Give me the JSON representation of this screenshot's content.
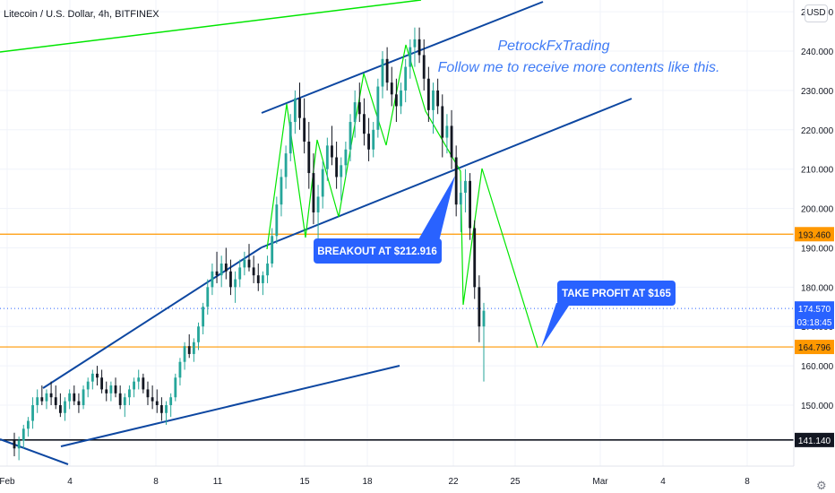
{
  "header": {
    "symbol_title": "Litecoin / U.S. Dollar, 4h, BITFINEX",
    "currency_button": "USD"
  },
  "watermark": {
    "line1": "PetrockFxTrading",
    "line2": "Follow me to receive more contents like this."
  },
  "annotations": {
    "breakout": "BREAKOUT AT $212.916",
    "take_profit": "TAKE PROFIT AT $165"
  },
  "price_axis": {
    "ticks": [
      "250.000",
      "240.000",
      "230.000",
      "220.000",
      "210.000",
      "200.000",
      "190.000",
      "180.000",
      "170.000",
      "160.000",
      "150.000"
    ],
    "tick_values": [
      250,
      240,
      230,
      220,
      210,
      200,
      190,
      180,
      170,
      160,
      150
    ]
  },
  "price_labels": [
    {
      "text": "193.460",
      "value": 193.46,
      "color": "#ff9800",
      "text_color": "#131722"
    },
    {
      "text": "174.570",
      "value": 174.57,
      "color": "#2962ff",
      "text_color": "#ffffff"
    },
    {
      "text": "03:18:45",
      "value": 171.2,
      "color": "#2962ff",
      "text_color": "#ffffff"
    },
    {
      "text": "164.796",
      "value": 164.796,
      "color": "#ff9800",
      "text_color": "#131722"
    },
    {
      "text": "141.140",
      "value": 141.14,
      "color": "#131722",
      "text_color": "#ffffff"
    }
  ],
  "time_axis": {
    "labels": [
      "Feb",
      "4",
      "8",
      "11",
      "15",
      "18",
      "22",
      "25",
      "Mar",
      "4",
      "8"
    ]
  },
  "colors": {
    "up": "#26a69a",
    "down": "#131722",
    "channel": "#0d47a1",
    "projection": "#00e600",
    "orange_level": "#ff9800",
    "callout": "#2962ff"
  },
  "chart_data": {
    "type": "candlestick",
    "title": "Litecoin / U.S. Dollar, 4h, BITFINEX",
    "ylim": [
      134.5,
      253
    ],
    "x": [
      "Feb",
      "4",
      "8",
      "11",
      "15",
      "18",
      "22",
      "25",
      "Mar",
      "4",
      "8"
    ],
    "horizontal_levels": [
      193.46,
      164.796,
      141.14
    ],
    "current_price": 174.57,
    "candles": [
      [
        141,
        143,
        137,
        139
      ],
      [
        139,
        142,
        136,
        141
      ],
      [
        141,
        145,
        139,
        144
      ],
      [
        144,
        147,
        142,
        146
      ],
      [
        146,
        152,
        144,
        150
      ],
      [
        150,
        154,
        148,
        152
      ],
      [
        152,
        155,
        150,
        151
      ],
      [
        151,
        154,
        149,
        153
      ],
      [
        153,
        156,
        150,
        152
      ],
      [
        152,
        155,
        149,
        150
      ],
      [
        150,
        153,
        147,
        148
      ],
      [
        148,
        152,
        146,
        151
      ],
      [
        151,
        154,
        149,
        153
      ],
      [
        153,
        155,
        150,
        151
      ],
      [
        151,
        153,
        148,
        150
      ],
      [
        150,
        155,
        149,
        154
      ],
      [
        154,
        157,
        152,
        156
      ],
      [
        156,
        159,
        154,
        158
      ],
      [
        158,
        160,
        155,
        157
      ],
      [
        157,
        159,
        153,
        154
      ],
      [
        154,
        156,
        151,
        153
      ],
      [
        153,
        156,
        151,
        155
      ],
      [
        155,
        157,
        152,
        153
      ],
      [
        153,
        155,
        149,
        150
      ],
      [
        150,
        153,
        147,
        152
      ],
      [
        152,
        155,
        150,
        154
      ],
      [
        154,
        157,
        152,
        156
      ],
      [
        156,
        159,
        154,
        157
      ],
      [
        157,
        158,
        153,
        154
      ],
      [
        154,
        156,
        150,
        152
      ],
      [
        152,
        155,
        149,
        151
      ],
      [
        151,
        154,
        148,
        150
      ],
      [
        150,
        152,
        146,
        148
      ],
      [
        148,
        151,
        145,
        150
      ],
      [
        150,
        153,
        147,
        152
      ],
      [
        152,
        158,
        151,
        157
      ],
      [
        157,
        162,
        155,
        161
      ],
      [
        161,
        166,
        159,
        165
      ],
      [
        165,
        168,
        162,
        163
      ],
      [
        163,
        167,
        161,
        166
      ],
      [
        166,
        171,
        164,
        170
      ],
      [
        170,
        176,
        168,
        175
      ],
      [
        175,
        182,
        173,
        180
      ],
      [
        180,
        186,
        178,
        184
      ],
      [
        184,
        189,
        181,
        183
      ],
      [
        183,
        188,
        180,
        186
      ],
      [
        186,
        190,
        182,
        184
      ],
      [
        184,
        187,
        178,
        180
      ],
      [
        180,
        184,
        176,
        182
      ],
      [
        182,
        187,
        180,
        185
      ],
      [
        185,
        189,
        183,
        187
      ],
      [
        187,
        191,
        184,
        185
      ],
      [
        185,
        188,
        181,
        183
      ],
      [
        183,
        186,
        179,
        181
      ],
      [
        181,
        184,
        178,
        183
      ],
      [
        183,
        188,
        181,
        186
      ],
      [
        186,
        195,
        185,
        193
      ],
      [
        193,
        203,
        191,
        201
      ],
      [
        201,
        210,
        198,
        208
      ],
      [
        208,
        216,
        205,
        214
      ],
      [
        214,
        224,
        212,
        222
      ],
      [
        222,
        230,
        219,
        228
      ],
      [
        228,
        232,
        220,
        223
      ],
      [
        223,
        228,
        214,
        217
      ],
      [
        217,
        222,
        205,
        209
      ],
      [
        209,
        214,
        196,
        199
      ],
      [
        199,
        206,
        192,
        203
      ],
      [
        203,
        212,
        200,
        210
      ],
      [
        210,
        218,
        207,
        216
      ],
      [
        216,
        221,
        211,
        213
      ],
      [
        213,
        217,
        205,
        208
      ],
      [
        208,
        213,
        202,
        211
      ],
      [
        211,
        217,
        208,
        215
      ],
      [
        215,
        224,
        212,
        222
      ],
      [
        222,
        230,
        218,
        227
      ],
      [
        227,
        232,
        222,
        224
      ],
      [
        224,
        228,
        216,
        219
      ],
      [
        219,
        223,
        212,
        215
      ],
      [
        215,
        222,
        213,
        220
      ],
      [
        220,
        233,
        218,
        231
      ],
      [
        231,
        240,
        228,
        238
      ],
      [
        238,
        241,
        230,
        232
      ],
      [
        232,
        236,
        226,
        229
      ],
      [
        229,
        233,
        222,
        226
      ],
      [
        226,
        232,
        224,
        230
      ],
      [
        230,
        238,
        227,
        236
      ],
      [
        236,
        243,
        233,
        241
      ],
      [
        241,
        246,
        236,
        243
      ],
      [
        243,
        246,
        237,
        239
      ],
      [
        239,
        243,
        230,
        233
      ],
      [
        233,
        236,
        222,
        225
      ],
      [
        225,
        232,
        219,
        230
      ],
      [
        230,
        233,
        224,
        226
      ],
      [
        226,
        229,
        213,
        218
      ],
      [
        218,
        224,
        214,
        221
      ],
      [
        221,
        225,
        210,
        213
      ],
      [
        213,
        216,
        198,
        201
      ],
      [
        201,
        207,
        194,
        204
      ],
      [
        204,
        210,
        199,
        207
      ],
      [
        207,
        209,
        192,
        195
      ],
      [
        195,
        197,
        177,
        180
      ],
      [
        180,
        183,
        166,
        170
      ],
      [
        170,
        176,
        156,
        174
      ]
    ]
  }
}
